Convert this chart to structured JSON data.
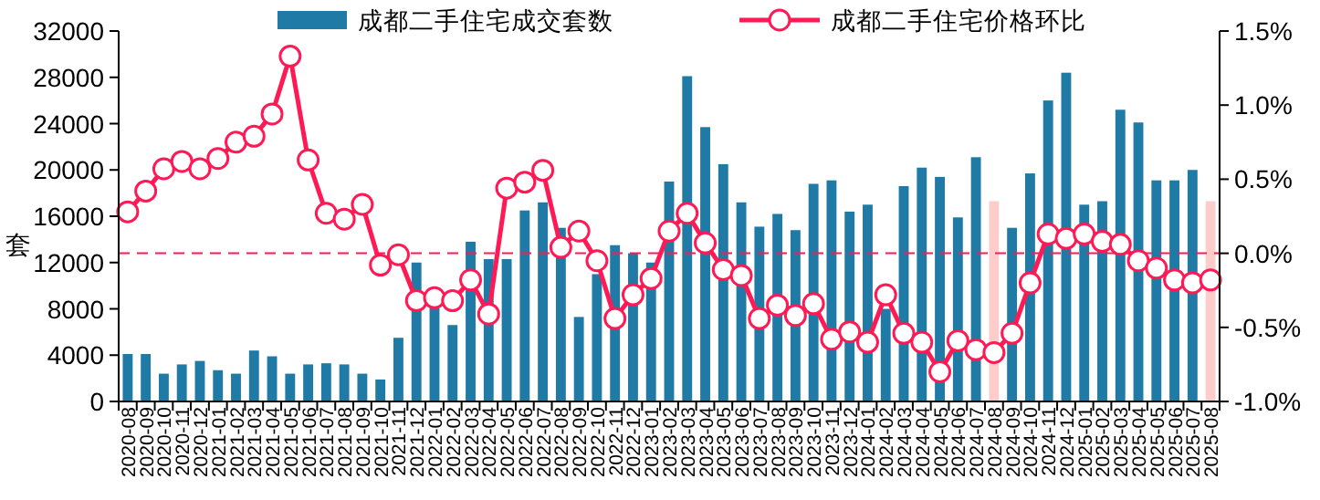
{
  "chart_data": {
    "type": "bar",
    "ylabel": "套",
    "categories": [
      "2020-08",
      "2020-09",
      "2020-10",
      "2020-11",
      "2020-12",
      "2021-01",
      "2021-02",
      "2021-03",
      "2021-04",
      "2021-05",
      "2021-06",
      "2021-07",
      "2021-08",
      "2021-09",
      "2021-10",
      "2021-11",
      "2021-12",
      "2022-01",
      "2022-02",
      "2022-03",
      "2022-04",
      "2022-05",
      "2022-06",
      "2022-07",
      "2022-08",
      "2022-09",
      "2022-10",
      "2022-11",
      "2022-12",
      "2023-01",
      "2023-02",
      "2023-03",
      "2023-04",
      "2023-05",
      "2023-06",
      "2023-07",
      "2023-08",
      "2023-09",
      "2023-10",
      "2023-11",
      "2023-12",
      "2024-01",
      "2024-02",
      "2024-03",
      "2024-04",
      "2024-05",
      "2024-06",
      "2024-07",
      "2024-08",
      "2024-09",
      "2024-10",
      "2024-11",
      "2024-12",
      "2025-01",
      "2025-02",
      "2025-03",
      "2025-04",
      "2025-05",
      "2025-06",
      "2025-07",
      "2025-08"
    ],
    "series": [
      {
        "name": "成都二手住宅成交套数",
        "color": "#1f7ba6",
        "colors": [
          "#1f7ba6",
          "#1f7ba6",
          "#1f7ba6",
          "#1f7ba6",
          "#1f7ba6",
          "#1f7ba6",
          "#1f7ba6",
          "#1f7ba6",
          "#1f7ba6",
          "#1f7ba6",
          "#1f7ba6",
          "#1f7ba6",
          "#1f7ba6",
          "#1f7ba6",
          "#1f7ba6",
          "#1f7ba6",
          "#1f7ba6",
          "#1f7ba6",
          "#1f7ba6",
          "#1f7ba6",
          "#1f7ba6",
          "#1f7ba6",
          "#1f7ba6",
          "#1f7ba6",
          "#1f7ba6",
          "#1f7ba6",
          "#1f7ba6",
          "#1f7ba6",
          "#1f7ba6",
          "#1f7ba6",
          "#1f7ba6",
          "#1f7ba6",
          "#1f7ba6",
          "#1f7ba6",
          "#1f7ba6",
          "#1f7ba6",
          "#1f7ba6",
          "#1f7ba6",
          "#1f7ba6",
          "#1f7ba6",
          "#1f7ba6",
          "#1f7ba6",
          "#1f7ba6",
          "#1f7ba6",
          "#1f7ba6",
          "#1f7ba6",
          "#1f7ba6",
          "#1f7ba6",
          "#ffcccc",
          "#1f7ba6",
          "#1f7ba6",
          "#1f7ba6",
          "#1f7ba6",
          "#1f7ba6",
          "#1f7ba6",
          "#1f7ba6",
          "#1f7ba6",
          "#1f7ba6",
          "#1f7ba6",
          "#1f7ba6",
          "#ffcccc"
        ],
        "values": [
          4100,
          4100,
          2400,
          3200,
          3500,
          2700,
          2400,
          4400,
          3900,
          2400,
          3200,
          3300,
          3200,
          2400,
          1900,
          5500,
          12000,
          8400,
          6600,
          13800,
          12300,
          12300,
          16500,
          17200,
          15000,
          7300,
          11000,
          13500,
          12800,
          12000,
          19000,
          28100,
          23700,
          20500,
          17200,
          15100,
          16200,
          14800,
          18800,
          19100,
          16400,
          17000,
          8000,
          18600,
          20200,
          19400,
          15900,
          21100,
          17300,
          15000,
          19700,
          26000,
          28400,
          17000,
          17300,
          25200,
          24100,
          19100,
          19100,
          20000,
          17300
        ]
      },
      {
        "name": "成都二手住宅价格环比",
        "type": "line",
        "axis": "y2",
        "color": "#ff1a55",
        "marker": "circle",
        "values": [
          0.28,
          0.42,
          0.57,
          0.62,
          0.57,
          0.64,
          0.75,
          0.79,
          0.94,
          1.33,
          0.63,
          0.27,
          0.23,
          0.33,
          -0.08,
          -0.01,
          -0.32,
          -0.3,
          -0.32,
          -0.18,
          -0.41,
          0.44,
          0.48,
          0.56,
          0.04,
          0.15,
          -0.05,
          -0.44,
          -0.28,
          -0.17,
          0.15,
          0.27,
          0.07,
          -0.11,
          -0.15,
          -0.44,
          -0.35,
          -0.42,
          -0.34,
          -0.58,
          -0.53,
          -0.6,
          -0.28,
          -0.54,
          -0.6,
          -0.8,
          -0.59,
          -0.65,
          -0.67,
          -0.54,
          -0.2,
          0.13,
          0.1,
          0.13,
          0.08,
          0.06,
          -0.05,
          -0.1,
          -0.18,
          -0.2,
          -0.18
        ]
      }
    ],
    "ylim": [
      0,
      32000
    ],
    "yticks": [
      0,
      4000,
      8000,
      12000,
      16000,
      20000,
      24000,
      28000,
      32000
    ],
    "y2lim": [
      -1.0,
      1.5
    ],
    "y2ticks": [
      {
        "value": -1.0,
        "label": "-1.0%"
      },
      {
        "value": -0.5,
        "label": "-0.5%"
      },
      {
        "value": 0.0,
        "label": "0.0%"
      },
      {
        "value": 0.5,
        "label": "0.5%"
      },
      {
        "value": 1.0,
        "label": "1.0%"
      },
      {
        "value": 1.5,
        "label": "1.5%"
      }
    ],
    "ref_lines": [
      {
        "axis": "y2",
        "value": 0,
        "color": "#ff1a55",
        "line_style": "dashed"
      }
    ],
    "legend": "top",
    "grid": false
  }
}
